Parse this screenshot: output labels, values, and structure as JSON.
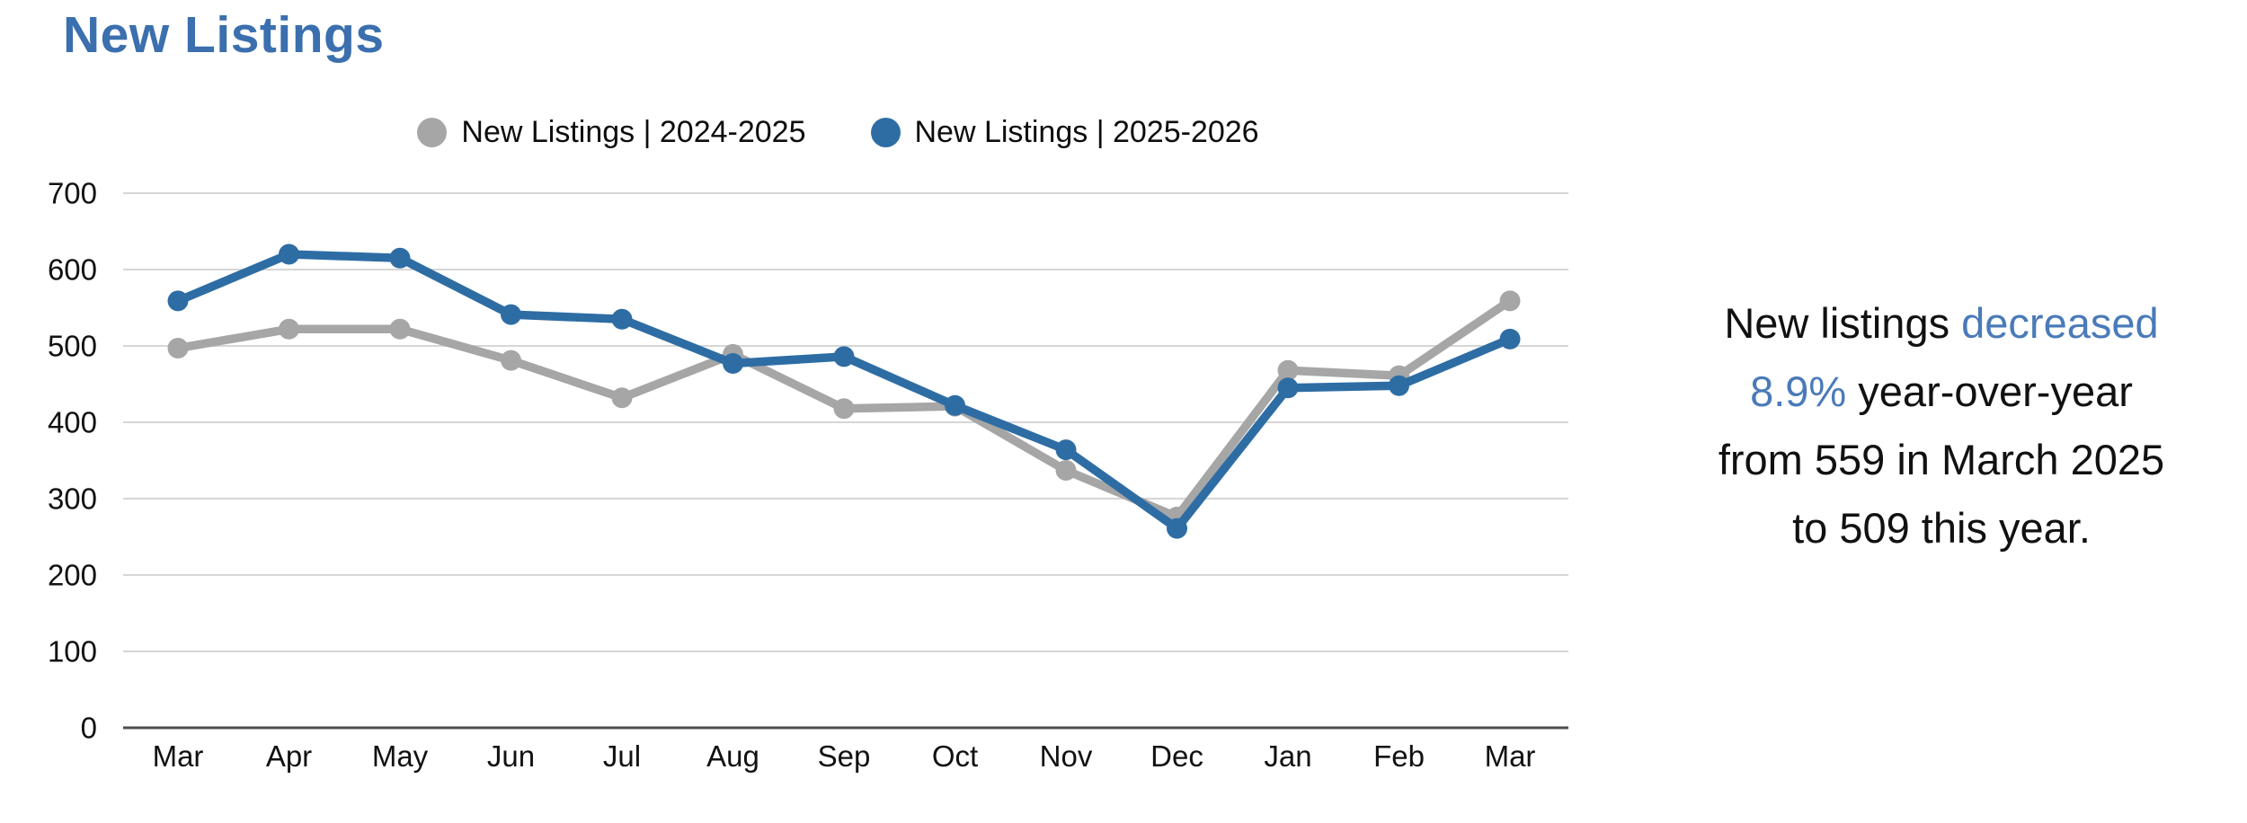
{
  "page": {
    "title": "New Listings"
  },
  "legend": {
    "items": [
      {
        "label": "New Listings | 2024-2025",
        "color": "#a6a6a6"
      },
      {
        "label": "New Listings | 2025-2026",
        "color": "#2e6da4"
      }
    ]
  },
  "chart_data": {
    "type": "line",
    "title": "New Listings",
    "categories": [
      "Mar",
      "Apr",
      "May",
      "Jun",
      "Jul",
      "Aug",
      "Sep",
      "Oct",
      "Nov",
      "Dec",
      "Jan",
      "Feb",
      "Mar"
    ],
    "series": [
      {
        "name": "New Listings | 2024-2025",
        "color": "#a6a6a6",
        "values": [
          497,
          522,
          522,
          481,
          432,
          489,
          418,
          421,
          337,
          276,
          468,
          461,
          559
        ]
      },
      {
        "name": "New Listings | 2025-2026",
        "color": "#2e6da4",
        "values": [
          559,
          620,
          615,
          541,
          535,
          477,
          486,
          422,
          364,
          261,
          445,
          448,
          509
        ]
      }
    ],
    "xlabel": "",
    "ylabel": "",
    "ylim": [
      0,
      700
    ],
    "yticks": [
      0,
      100,
      200,
      300,
      400,
      500,
      600,
      700
    ],
    "grid": true,
    "legend_position": "top"
  },
  "annotation": {
    "accent_color": "#4a7ab9",
    "text_color": "#111111",
    "full_text": "New listings decreased 8.9% year-over-year from 559 in March 2025 to 509 this year.",
    "lines": [
      [
        {
          "text": "New listings ",
          "accent": false
        },
        {
          "text": "decreased",
          "accent": true
        }
      ],
      [
        {
          "text": "8.9%",
          "accent": true
        },
        {
          "text": " year-over-year",
          "accent": false
        }
      ],
      [
        {
          "text": "from 559 in March 2025",
          "accent": false
        }
      ],
      [
        {
          "text": "to 509 this year.",
          "accent": false
        }
      ]
    ]
  },
  "colors": {
    "title": "#3b6fae",
    "gridline": "#d6d6d6",
    "axis_line": "#4d4d4d",
    "tick_label": "#111111",
    "series_2024_2025": "#a6a6a6",
    "series_2025_2026": "#2e6da4"
  }
}
